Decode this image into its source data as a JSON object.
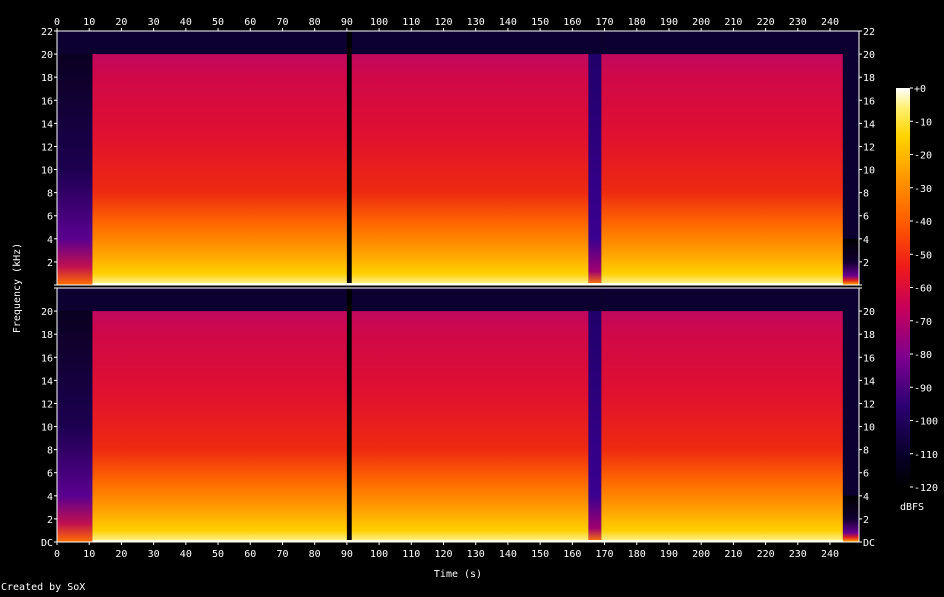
{
  "chart_data": {
    "type": "heatmap",
    "title": "",
    "xlabel": "Time (s)",
    "ylabel": "Frequency (kHz)",
    "x_ticks": [
      0,
      10,
      20,
      30,
      40,
      50,
      60,
      70,
      80,
      90,
      100,
      110,
      120,
      130,
      140,
      150,
      160,
      170,
      180,
      190,
      200,
      210,
      220,
      230,
      240
    ],
    "xlim": [
      0,
      249
    ],
    "channels": [
      {
        "y_tick_labels": [
          "DC",
          "2",
          "4",
          "6",
          "8",
          "10",
          "12",
          "14",
          "16",
          "18",
          "20",
          "22"
        ],
        "y_tick_values": [
          0,
          2,
          4,
          6,
          8,
          10,
          12,
          14,
          16,
          18,
          20,
          22
        ]
      },
      {
        "y_tick_labels": [
          "DC",
          "2",
          "4",
          "6",
          "8",
          "10",
          "12",
          "14",
          "16",
          "18",
          "20",
          "22"
        ],
        "y_tick_values": [
          0,
          2,
          4,
          6,
          8,
          10,
          12,
          14,
          16,
          18,
          20,
          22
        ]
      }
    ],
    "ylim": [
      0,
      22
    ],
    "colorbar": {
      "label": "dBFS",
      "tick_labels": [
        "+0",
        "-10",
        "-20",
        "-30",
        "-40",
        "-50",
        "-60",
        "-70",
        "-80",
        "-90",
        "-100",
        "-110",
        "-120"
      ],
      "tick_values": [
        0,
        -10,
        -20,
        -30,
        -40,
        -50,
        -60,
        -70,
        -80,
        -90,
        -100,
        -110,
        -120
      ],
      "range": [
        -120,
        0
      ]
    },
    "sections": [
      {
        "start": 0,
        "end": 11,
        "cutoff_khz": 20,
        "level": "fade-in"
      },
      {
        "start": 11,
        "end": 90,
        "cutoff_khz": 20,
        "level": "loud"
      },
      {
        "start": 90,
        "end": 91.5,
        "cutoff_khz": 0,
        "level": "silence"
      },
      {
        "start": 91.5,
        "end": 165,
        "cutoff_khz": 20,
        "level": "loud"
      },
      {
        "start": 165,
        "end": 169,
        "cutoff_khz": 20,
        "level": "quiet"
      },
      {
        "start": 169,
        "end": 244,
        "cutoff_khz": 20,
        "level": "loud"
      },
      {
        "start": 244,
        "end": 249,
        "cutoff_khz": 4,
        "level": "fade-out"
      }
    ],
    "grid": false,
    "legend": "none"
  },
  "footer": "Created by SoX",
  "colors": {
    "background": "#000000",
    "text": "#ffffff",
    "axis": "#ffffff"
  }
}
